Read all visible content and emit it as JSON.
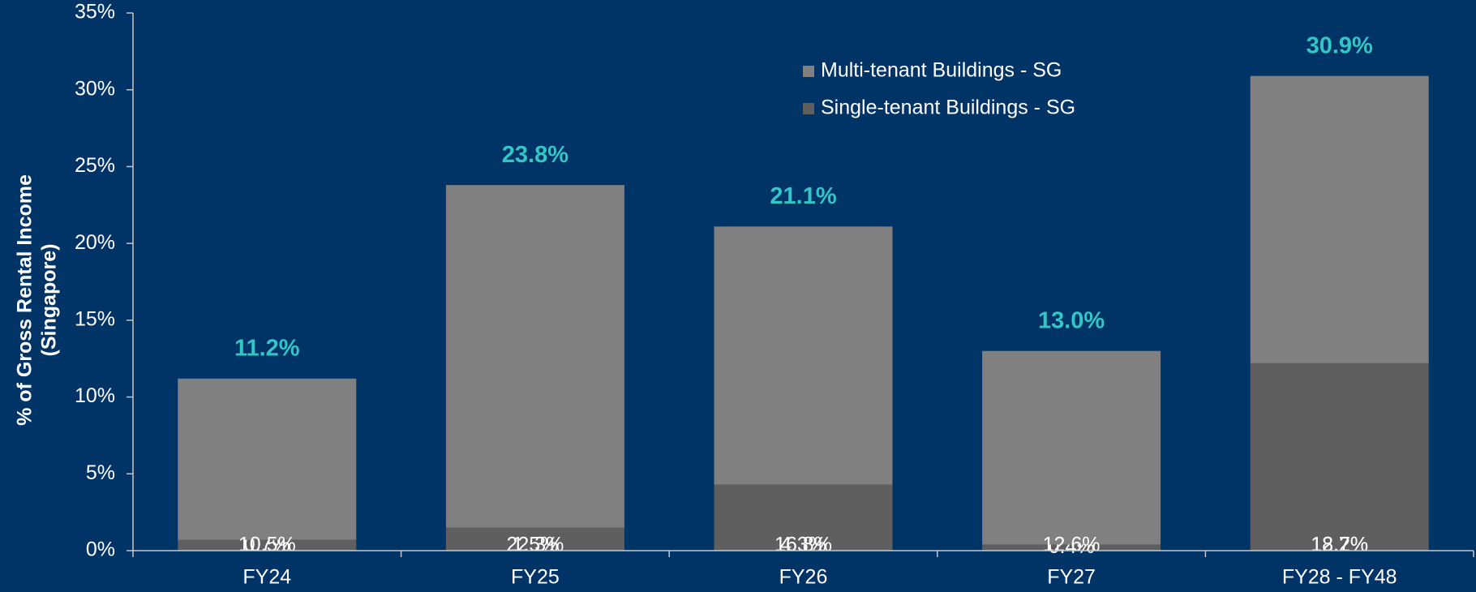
{
  "chart_data": {
    "type": "stacked_bar",
    "ylabel": [
      "% of  Gross Rental Income",
      "(Singapore)"
    ],
    "categories": [
      "FY24",
      "FY25",
      "FY26",
      "FY27",
      "FY28 - FY48"
    ],
    "series": [
      {
        "name": "Multi-tenant Buildings - SG",
        "color": "#808080",
        "values": [
          10.5,
          22.3,
          16.8,
          12.6,
          18.7
        ],
        "value_labels": [
          "10.5%",
          "22.3%",
          "16.8%",
          "12.6%",
          "18.7%"
        ]
      },
      {
        "name": "Single-tenant Buildings - SG",
        "color": "#5f5f5f",
        "values": [
          0.7,
          1.5,
          4.3,
          0.4,
          12.2
        ],
        "value_labels": [
          "0.7%",
          "1.5%",
          "4.3%",
          "0.4%",
          "12.2%"
        ]
      }
    ],
    "totals": [
      11.2,
      23.8,
      21.1,
      13.0,
      30.9
    ],
    "total_labels": [
      "11.2%",
      "23.8%",
      "21.1%",
      "13.0%",
      "30.9%"
    ],
    "total_color": "#33c6c6",
    "ylim": [
      0,
      35
    ],
    "yticks": [
      {
        "value": 0,
        "label": "0%"
      },
      {
        "value": 5,
        "label": "5%"
      },
      {
        "value": 10,
        "label": "10%"
      },
      {
        "value": 15,
        "label": "15%"
      },
      {
        "value": 20,
        "label": "20%"
      },
      {
        "value": 25,
        "label": "25%"
      },
      {
        "value": 30,
        "label": "30%"
      },
      {
        "value": 35,
        "label": "35%"
      }
    ],
    "legend": "top-right",
    "grid": false
  }
}
